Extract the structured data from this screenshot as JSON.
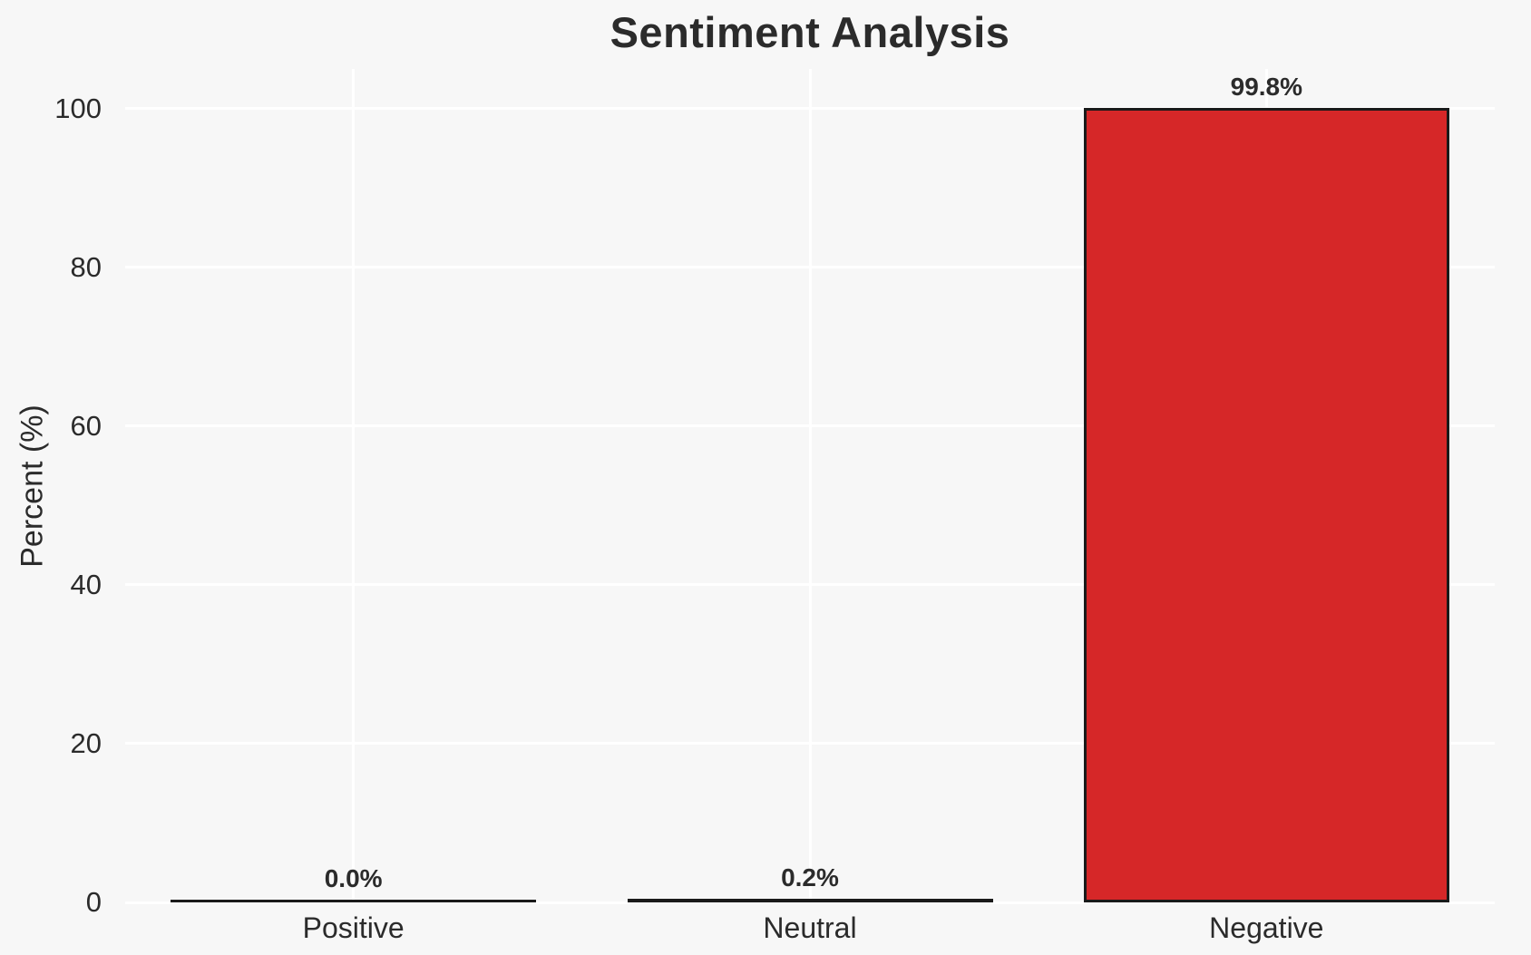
{
  "chart_data": {
    "type": "bar",
    "title": "Sentiment Analysis",
    "ylabel": "Percent (%)",
    "xlabel": "",
    "categories": [
      "Positive",
      "Neutral",
      "Negative"
    ],
    "values": [
      0.0,
      0.2,
      99.8
    ],
    "value_labels": [
      "0.0%",
      "0.2%",
      "99.8%"
    ],
    "yticks": [
      0,
      20,
      40,
      60,
      80,
      100
    ],
    "ylim": [
      0,
      105
    ],
    "grid": "white gridlines, horizontal at yticks and vertical at category centers",
    "legend": "none",
    "colors": {
      "background": "#f7f7f7",
      "gridline": "#ffffff",
      "negative_bar_fill": "#d62728",
      "bar_edge": "#1a1a1a",
      "text": "#2b2b2b"
    }
  }
}
